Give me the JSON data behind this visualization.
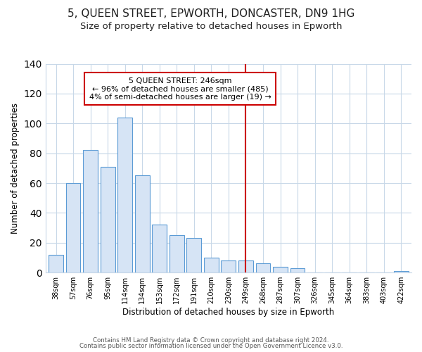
{
  "title": "5, QUEEN STREET, EPWORTH, DONCASTER, DN9 1HG",
  "subtitle": "Size of property relative to detached houses in Epworth",
  "xlabel": "Distribution of detached houses by size in Epworth",
  "ylabel": "Number of detached properties",
  "bar_labels": [
    "38sqm",
    "57sqm",
    "76sqm",
    "95sqm",
    "114sqm",
    "134sqm",
    "153sqm",
    "172sqm",
    "191sqm",
    "210sqm",
    "230sqm",
    "249sqm",
    "268sqm",
    "287sqm",
    "307sqm",
    "326sqm",
    "345sqm",
    "364sqm",
    "383sqm",
    "403sqm",
    "422sqm"
  ],
  "bar_values": [
    12,
    60,
    82,
    71,
    104,
    65,
    32,
    25,
    23,
    10,
    8,
    8,
    6,
    4,
    3,
    0,
    0,
    0,
    0,
    0,
    1
  ],
  "bar_color": "#d6e4f5",
  "bar_edge_color": "#5b9bd5",
  "vline_x": 11.0,
  "vline_color": "#cc0000",
  "annotation_title": "5 QUEEN STREET: 246sqm",
  "annotation_line1": "← 96% of detached houses are smaller (485)",
  "annotation_line2": "4% of semi-detached houses are larger (19) →",
  "annotation_box_color": "#ffffff",
  "annotation_box_edge": "#cc0000",
  "ylim": [
    0,
    140
  ],
  "yticks": [
    0,
    20,
    40,
    60,
    80,
    100,
    120,
    140
  ],
  "footer1": "Contains HM Land Registry data © Crown copyright and database right 2024.",
  "footer2": "Contains public sector information licensed under the Open Government Licence v3.0.",
  "title_fontsize": 11,
  "subtitle_fontsize": 9.5,
  "background_color": "#ffffff",
  "grid_color": "#c8d8e8"
}
